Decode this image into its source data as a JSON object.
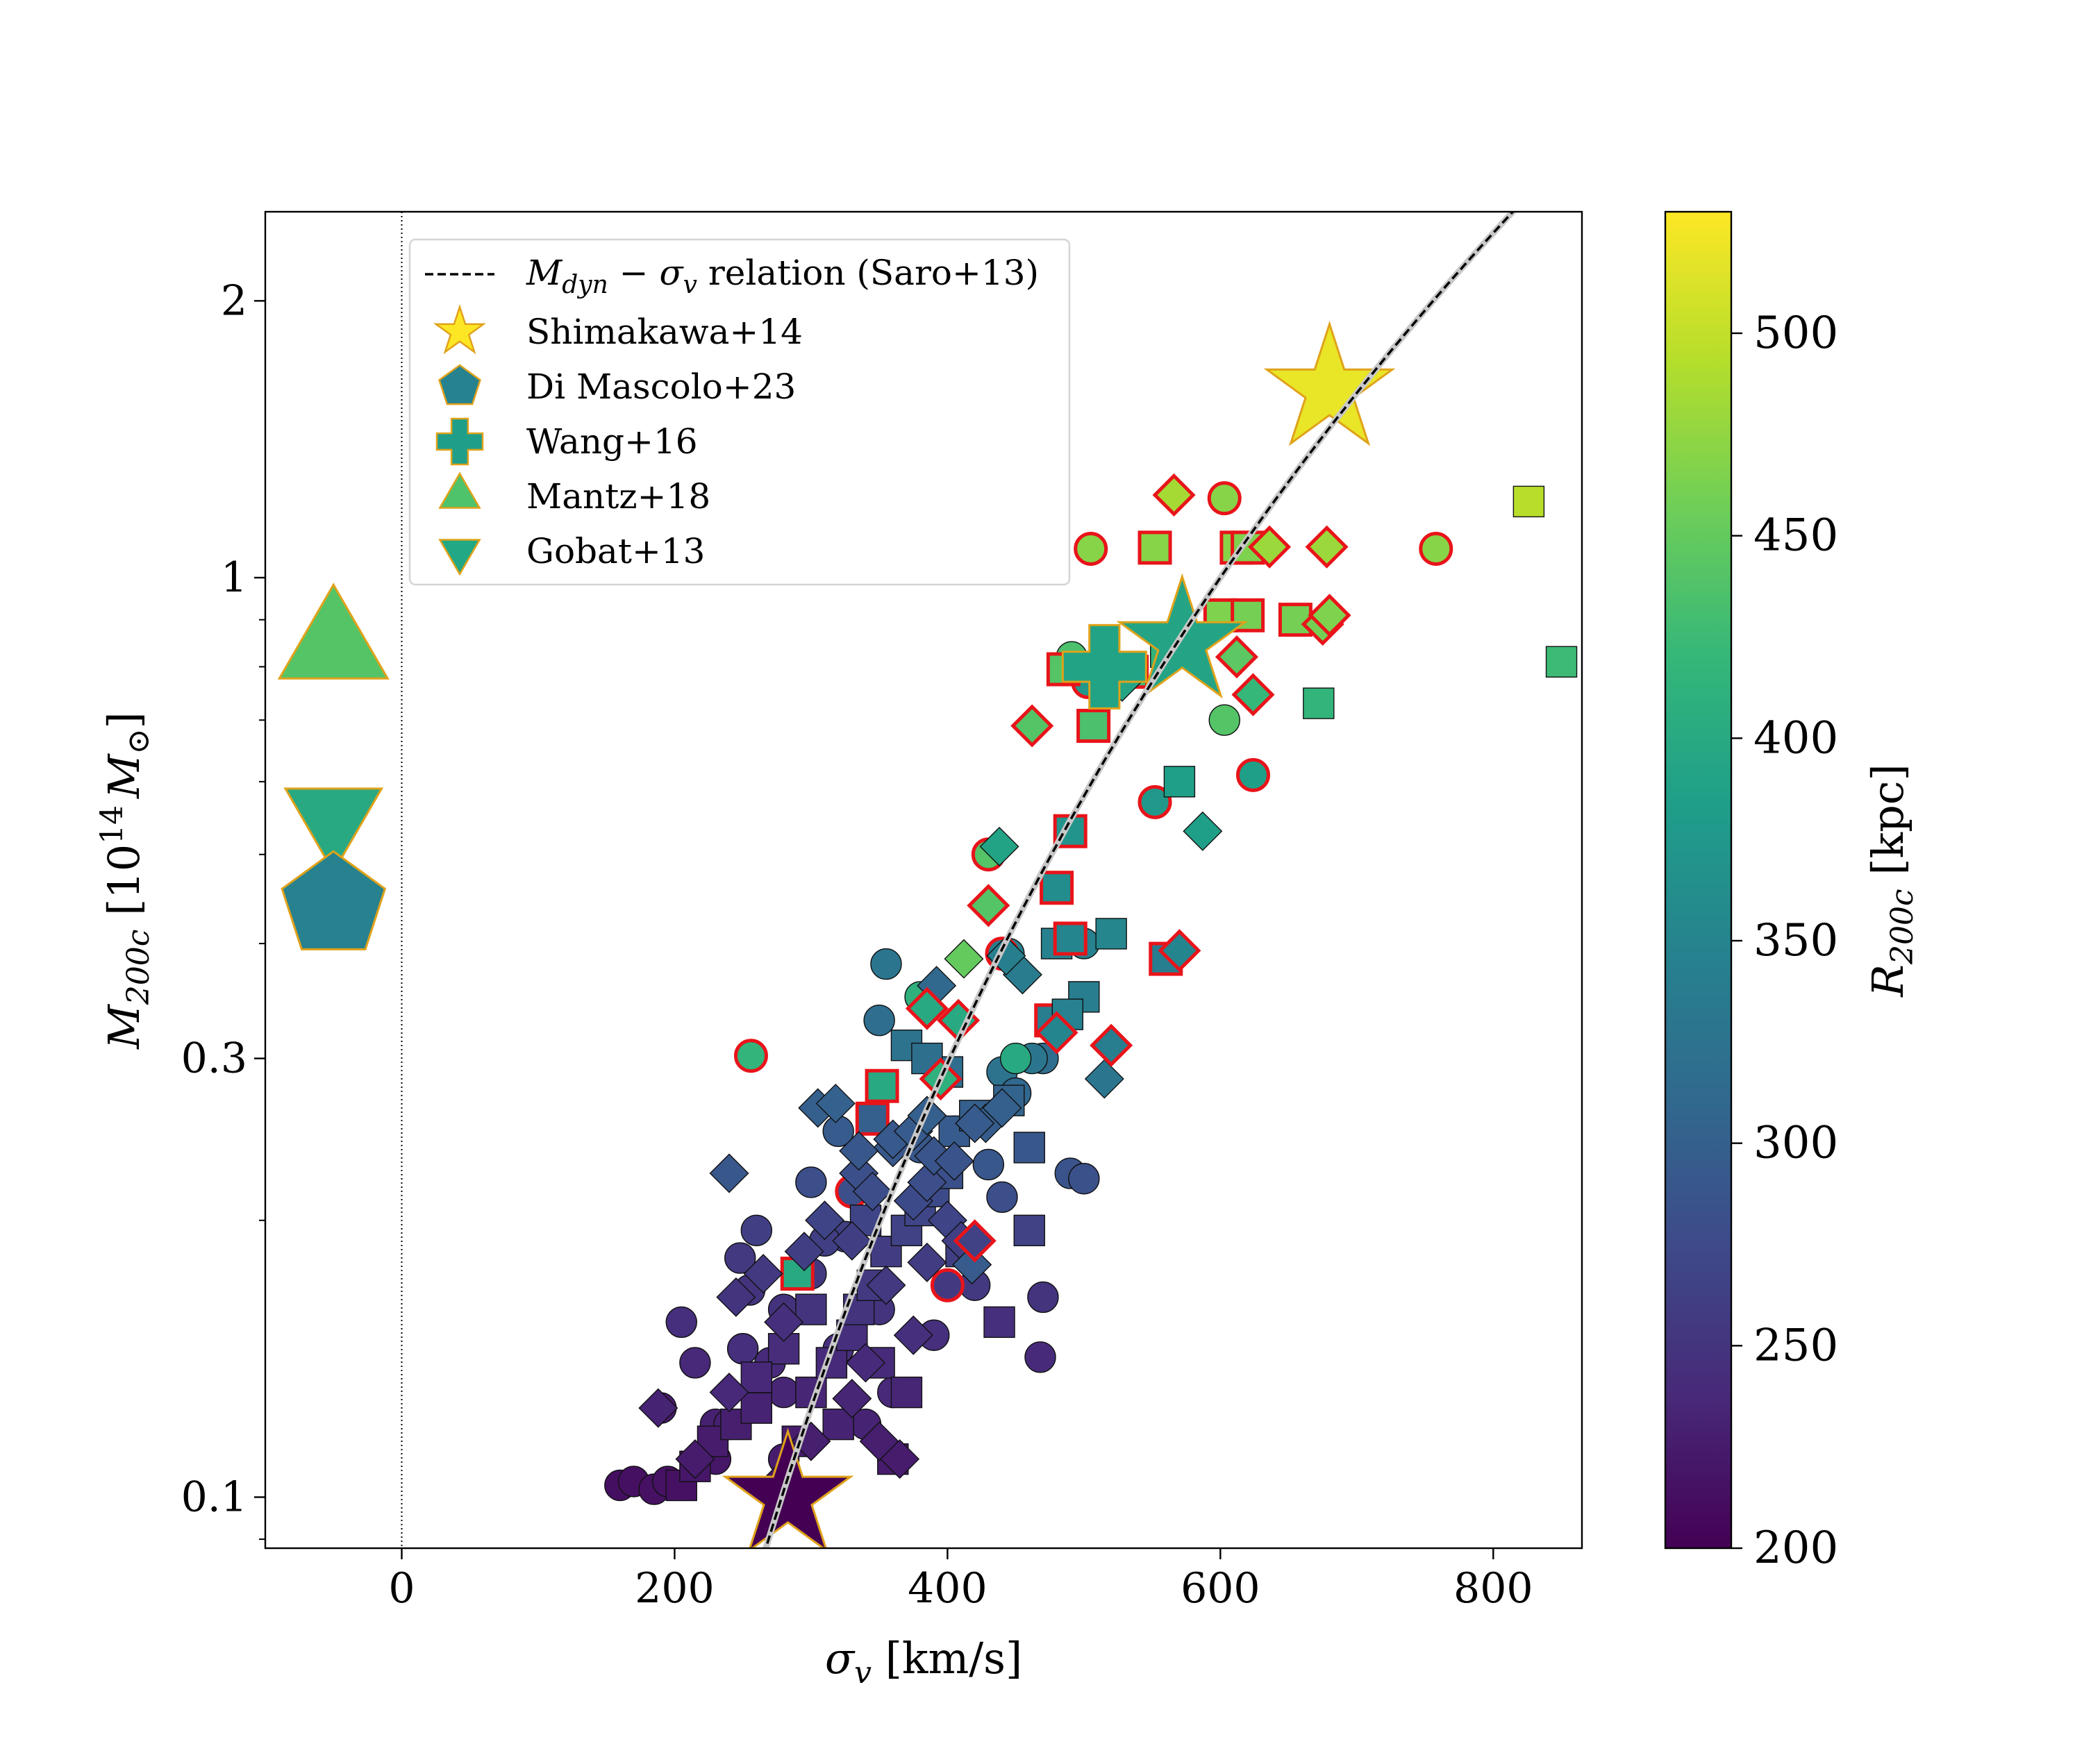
{
  "chart_data": {
    "type": "scatter",
    "xlabel": "σ_v [km/s]",
    "xlabel_parts": {
      "sym": "σ",
      "sub": "v",
      "unit": " [km/s]"
    },
    "ylabel": "M_200c [10^14 M_⊙]",
    "ylabel_parts": {
      "sym": "M",
      "sub": "200c",
      "unit_pre": " [10",
      "sup": "14",
      "unit_sym": "M",
      "unit_sub": "⊙",
      "unit_post": "]"
    },
    "xlim": [
      -100,
      865
    ],
    "ylim": [
      0.088,
      2.5
    ],
    "yscale": "log",
    "xticks": [
      {
        "v": 0,
        "label": "0"
      },
      {
        "v": 200,
        "label": "200"
      },
      {
        "v": 400,
        "label": "400"
      },
      {
        "v": 600,
        "label": "600"
      },
      {
        "v": 800,
        "label": "800"
      }
    ],
    "yticks": [
      {
        "v": 0.1,
        "label": "0.1"
      },
      {
        "v": 0.3,
        "label": "0.3"
      },
      {
        "v": 1,
        "label": "1"
      },
      {
        "v": 2,
        "label": "2"
      }
    ],
    "yminor": [
      0.09,
      0.2,
      0.4,
      0.5,
      0.6,
      0.7,
      0.8,
      0.9
    ],
    "vline_x": 0,
    "relation": {
      "name": "M_dyn − σ_v relation (Saro+13)",
      "A": 1,
      "x0": 600,
      "slope": 3.0,
      "x_range": [
        260,
        830
      ]
    },
    "colorbar": {
      "label": "R_200c [kpc]",
      "label_parts": {
        "sym": "R",
        "sub": "200c",
        "unit": " [kpc]"
      },
      "min": 200,
      "max": 530,
      "ticks": [
        200,
        250,
        300,
        350,
        400,
        450,
        500
      ],
      "stops": [
        "#440154",
        "#482878",
        "#3e4989",
        "#31688e",
        "#26828e",
        "#1f9e89",
        "#35b779",
        "#6ece58",
        "#b5de2b",
        "#fde725"
      ]
    },
    "legend": {
      "relation_label_parts": {
        "sym": "M",
        "sub": "dyn",
        "mid": " − ",
        "sym2": "σ",
        "sub2": "v",
        "rest": " relation (Saro+13)"
      },
      "entries": [
        {
          "label": "Shimakawa+14",
          "marker": "star",
          "color": "#fde725"
        },
        {
          "label": "Di Mascolo+23",
          "marker": "pentagon",
          "color": "#26828e"
        },
        {
          "label": "Wang+16",
          "marker": "plus",
          "color": "#1f9e89"
        },
        {
          "label": "Mantz+18",
          "marker": "triangle-up",
          "color": "#4ec36b"
        },
        {
          "label": "Gobat+13",
          "marker": "triangle-down",
          "color": "#22a884"
        }
      ]
    },
    "literature": [
      {
        "name": "Shimakawa+14",
        "marker": "star",
        "x": 680,
        "y": 1.6,
        "r": 520
      },
      {
        "name": "Shimakawa+14 (low)",
        "marker": "star",
        "x": 283,
        "y": 0.1,
        "r": 200
      },
      {
        "name": "Wang+16",
        "marker": "plus",
        "x": 515,
        "y": 0.8,
        "r": 390
      },
      {
        "name": "Di Mascolo+23 (star)",
        "marker": "star",
        "x": 572,
        "y": 0.85,
        "r": 392
      },
      {
        "name": "Mantz+18",
        "marker": "triangle-up",
        "x": -50,
        "y": 0.84,
        "r": 440
      },
      {
        "name": "Gobat+13",
        "marker": "triangle-down",
        "x": -50,
        "y": 0.55,
        "r": 400
      },
      {
        "name": "Di Mascolo+23",
        "marker": "pentagon",
        "x": -50,
        "y": 0.44,
        "r": 345
      }
    ],
    "series": [
      {
        "name": "circles",
        "marker": "circle",
        "points": [
          [
            160,
            0.103,
            213
          ],
          [
            170,
            0.104,
            214
          ],
          [
            185,
            0.102,
            215
          ],
          [
            195,
            0.104,
            216
          ],
          [
            190,
            0.125,
            225
          ],
          [
            205,
            0.155,
            245
          ],
          [
            215,
            0.14,
            238
          ],
          [
            230,
            0.12,
            230
          ],
          [
            248,
            0.182,
            255
          ],
          [
            255,
            0.168,
            250
          ],
          [
            260,
            0.195,
            262
          ],
          [
            280,
            0.16,
            248
          ],
          [
            300,
            0.175,
            256
          ],
          [
            325,
            0.192,
            262
          ],
          [
            355,
            0.38,
            330
          ],
          [
            256,
            0.302,
            415
          ],
          [
            380,
            0.24,
            290
          ],
          [
            405,
            0.25,
            295
          ],
          [
            420,
            0.17,
            255
          ],
          [
            470,
            0.165,
            250
          ],
          [
            468,
            0.142,
            240
          ],
          [
            490,
            0.225,
            285
          ],
          [
            500,
            0.222,
            283
          ],
          [
            440,
            0.29,
            325
          ],
          [
            450,
            0.275,
            310
          ],
          [
            470,
            0.3,
            318
          ],
          [
            430,
            0.23,
            290
          ],
          [
            440,
            0.212,
            280
          ],
          [
            462,
            0.3,
            330
          ],
          [
            500,
            0.4,
            345
          ],
          [
            445,
            0.39,
            345
          ],
          [
            552,
            0.57,
            375
          ],
          [
            624,
            0.61,
            385
          ],
          [
            503,
            0.77,
            375
          ],
          [
            491,
            0.82,
            435
          ],
          [
            603,
            0.7,
            440
          ],
          [
            505,
            1.075,
            470
          ],
          [
            603,
            1.22,
            470
          ],
          [
            758,
            1.075,
            470
          ],
          [
            440,
            0.39,
            340
          ],
          [
            430,
            0.5,
            440
          ],
          [
            350,
            0.33,
            318
          ],
          [
            320,
            0.25,
            295
          ],
          [
            300,
            0.22,
            280
          ],
          [
            270,
            0.14,
            240
          ],
          [
            240,
            0.12,
            230
          ],
          [
            230,
            0.11,
            220
          ],
          [
            280,
            0.13,
            235
          ],
          [
            320,
            0.145,
            245
          ],
          [
            350,
            0.16,
            250
          ],
          [
            360,
            0.13,
            238
          ],
          [
            390,
            0.15,
            245
          ],
          [
            280,
            0.11,
            225
          ],
          [
            340,
            0.12,
            232
          ],
          [
            310,
            0.19,
            262
          ],
          [
            250,
            0.145,
            245
          ],
          [
            330,
            0.215,
            280
          ],
          [
            400,
            0.17,
            255
          ],
          [
            450,
            0.3,
            400
          ],
          [
            380,
            0.35,
            410
          ]
        ]
      },
      {
        "name": "squares",
        "marker": "square",
        "points": [
          [
            205,
            0.103,
            215
          ],
          [
            215,
            0.108,
            220
          ],
          [
            228,
            0.115,
            225
          ],
          [
            245,
            0.12,
            228
          ],
          [
            260,
            0.125,
            232
          ],
          [
            290,
            0.115,
            225
          ],
          [
            300,
            0.13,
            235
          ],
          [
            315,
            0.14,
            240
          ],
          [
            330,
            0.15,
            245
          ],
          [
            335,
            0.16,
            250
          ],
          [
            345,
            0.17,
            255
          ],
          [
            355,
            0.185,
            260
          ],
          [
            370,
            0.195,
            265
          ],
          [
            380,
            0.205,
            270
          ],
          [
            390,
            0.215,
            275
          ],
          [
            400,
            0.225,
            282
          ],
          [
            405,
            0.25,
            295
          ],
          [
            420,
            0.26,
            300
          ],
          [
            445,
            0.27,
            305
          ],
          [
            460,
            0.24,
            290
          ],
          [
            460,
            0.195,
            265
          ],
          [
            438,
            0.155,
            245
          ],
          [
            370,
            0.31,
            325
          ],
          [
            400,
            0.29,
            318
          ],
          [
            345,
            0.258,
            300
          ],
          [
            385,
            0.3,
            320
          ],
          [
            480,
            0.4,
            345
          ],
          [
            490,
            0.405,
            350
          ],
          [
            520,
            0.41,
            352
          ],
          [
            500,
            0.35,
            340
          ],
          [
            490,
            0.53,
            370
          ],
          [
            570,
            0.6,
            385
          ],
          [
            672,
            0.73,
            415
          ],
          [
            535,
            0.79,
            425
          ],
          [
            485,
            0.795,
            440
          ],
          [
            560,
            0.83,
            415
          ],
          [
            552,
            1.078,
            470
          ],
          [
            612,
            1.078,
            470
          ],
          [
            620,
            1.078,
            465
          ],
          [
            655,
            0.9,
            460
          ],
          [
            600,
            0.91,
            465
          ],
          [
            620,
            0.91,
            460
          ],
          [
            507,
            0.69,
            435
          ],
          [
            480,
            0.46,
            360
          ],
          [
            476,
            0.33,
            340
          ],
          [
            488,
            0.335,
            345
          ],
          [
            560,
            0.385,
            340
          ],
          [
            352,
            0.28,
            400
          ],
          [
            290,
            0.175,
            400
          ],
          [
            850,
            0.81,
            425
          ],
          [
            826,
            1.21,
            495
          ],
          [
            300,
            0.16,
            250
          ],
          [
            320,
            0.12,
            232
          ],
          [
            350,
            0.14,
            240
          ],
          [
            360,
            0.11,
            225
          ],
          [
            370,
            0.13,
            235
          ],
          [
            410,
            0.185,
            262
          ],
          [
            340,
            0.2,
            268
          ],
          [
            280,
            0.145,
            242
          ],
          [
            260,
            0.135,
            238
          ]
        ]
      },
      {
        "name": "diamonds",
        "marker": "diamond",
        "points": [
          [
            188,
            0.125,
            232
          ],
          [
            215,
            0.11,
            225
          ],
          [
            240,
            0.13,
            238
          ],
          [
            245,
            0.165,
            250
          ],
          [
            265,
            0.175,
            255
          ],
          [
            280,
            0.155,
            245
          ],
          [
            295,
            0.185,
            262
          ],
          [
            310,
            0.2,
            268
          ],
          [
            330,
            0.19,
            262
          ],
          [
            335,
            0.225,
            282
          ],
          [
            345,
            0.215,
            278
          ],
          [
            360,
            0.24,
            290
          ],
          [
            375,
            0.21,
            275
          ],
          [
            385,
            0.22,
            280
          ],
          [
            400,
            0.2,
            268
          ],
          [
            390,
            0.235,
            288
          ],
          [
            355,
            0.17,
            255
          ],
          [
            385,
            0.18,
            260
          ],
          [
            340,
            0.14,
            240
          ],
          [
            330,
            0.128,
            235
          ],
          [
            300,
            0.115,
            228
          ],
          [
            280,
            0.105,
            222
          ],
          [
            350,
            0.115,
            228
          ],
          [
            365,
            0.11,
            225
          ],
          [
            240,
            0.225,
            290
          ],
          [
            305,
            0.265,
            300
          ],
          [
            318,
            0.268,
            302
          ],
          [
            335,
            0.238,
            290
          ],
          [
            360,
            0.245,
            292
          ],
          [
            375,
            0.25,
            295
          ],
          [
            385,
            0.26,
            300
          ],
          [
            410,
            0.19,
            262
          ],
          [
            428,
            0.255,
            296
          ],
          [
            440,
            0.265,
            300
          ],
          [
            405,
            0.232,
            286
          ],
          [
            420,
            0.255,
            295
          ],
          [
            375,
            0.15,
            245
          ],
          [
            455,
            0.37,
            338
          ],
          [
            443,
            0.388,
            342
          ],
          [
            515,
            0.285,
            330
          ],
          [
            570,
            0.393,
            350
          ],
          [
            587,
            0.53,
            385
          ],
          [
            528,
            0.77,
            392
          ],
          [
            624,
            0.746,
            420
          ],
          [
            438,
            0.51,
            390
          ],
          [
            418,
            0.179,
            295
          ],
          [
            392,
            0.36,
            310
          ],
          [
            412,
            0.385,
            450
          ],
          [
            430,
            0.44,
            440
          ],
          [
            480,
            0.32,
            350
          ],
          [
            520,
            0.31,
            340
          ],
          [
            395,
            0.285,
            410
          ],
          [
            420,
            0.19,
            265
          ],
          [
            408,
            0.33,
            400
          ],
          [
            462,
            0.69,
            440
          ],
          [
            612,
            0.82,
            445
          ],
          [
            675,
            0.89,
            460
          ],
          [
            680,
            0.91,
            465
          ],
          [
            636,
            1.08,
            480
          ],
          [
            678,
            1.08,
            480
          ],
          [
            566,
            1.23,
            485
          ],
          [
            385,
            0.34,
            400
          ]
        ]
      }
    ],
    "red_edged": {
      "circles": [
        15,
        31,
        32,
        33,
        36,
        37,
        38,
        39,
        40,
        56,
        57
      ],
      "squares": [
        24,
        27,
        30,
        33,
        34,
        36,
        37,
        38,
        39,
        40,
        41,
        42,
        43,
        44,
        46,
        47,
        48
      ],
      "diamonds": [
        40,
        43,
        48,
        49,
        50,
        51,
        52,
        53,
        54,
        55,
        56,
        57,
        58,
        59,
        60,
        61
      ]
    }
  }
}
